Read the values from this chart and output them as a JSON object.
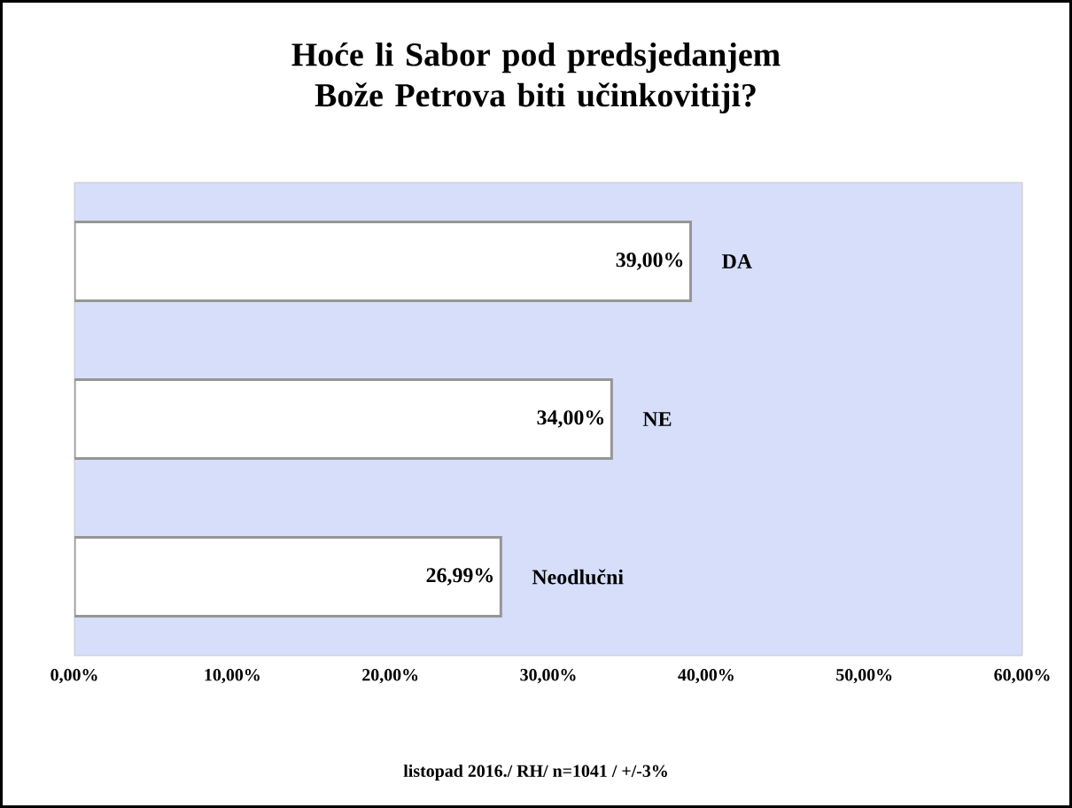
{
  "chart_data": {
    "type": "bar",
    "orientation": "horizontal",
    "title": "Hoće li Sabor pod predsjedanjem Bože Petrova biti učinkovitiji?",
    "categories": [
      "DA",
      "NE",
      "Neodlučni"
    ],
    "values": [
      39,
      34,
      26.99
    ],
    "value_labels": [
      "39,00%",
      "34,00%",
      "26,99%"
    ],
    "color": "#ffffff",
    "xlim": [
      0,
      60
    ],
    "xticks": [
      {
        "value": 0,
        "label": "0,00%"
      },
      {
        "value": 10,
        "label": "10,00%"
      },
      {
        "value": 20,
        "label": "20,00%"
      },
      {
        "value": 30,
        "label": "30,00%"
      },
      {
        "value": 40,
        "label": "40,00%"
      },
      {
        "value": 50,
        "label": "50,00%"
      },
      {
        "value": 60,
        "label": "60,00%"
      }
    ],
    "annotations": [
      "listopad 2016./ RH/ n=1041 / +/-3%"
    ]
  }
}
